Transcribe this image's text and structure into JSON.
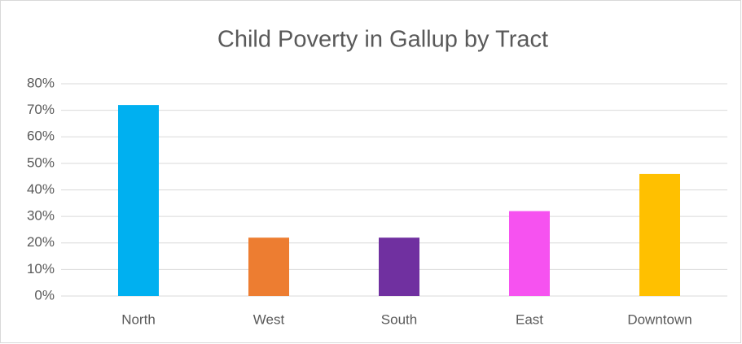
{
  "chart_data": {
    "type": "bar",
    "title": "Child Poverty in Gallup by Tract",
    "categories": [
      "North",
      "West",
      "South",
      "East",
      "Downtown"
    ],
    "values": [
      72,
      22,
      22,
      32,
      46
    ],
    "colors": [
      "#00b0f0",
      "#ed7d31",
      "#7030a0",
      "#f652f0",
      "#ffc000"
    ],
    "ylim": [
      0,
      80
    ],
    "yticks": [
      {
        "value": 0,
        "label": "0%"
      },
      {
        "value": 10,
        "label": "10%"
      },
      {
        "value": 20,
        "label": "20%"
      },
      {
        "value": 30,
        "label": "30%"
      },
      {
        "value": 40,
        "label": "40%"
      },
      {
        "value": 50,
        "label": "50%"
      },
      {
        "value": 60,
        "label": "60%"
      },
      {
        "value": 70,
        "label": "70%"
      },
      {
        "value": 80,
        "label": "80%"
      }
    ],
    "grid": true
  }
}
